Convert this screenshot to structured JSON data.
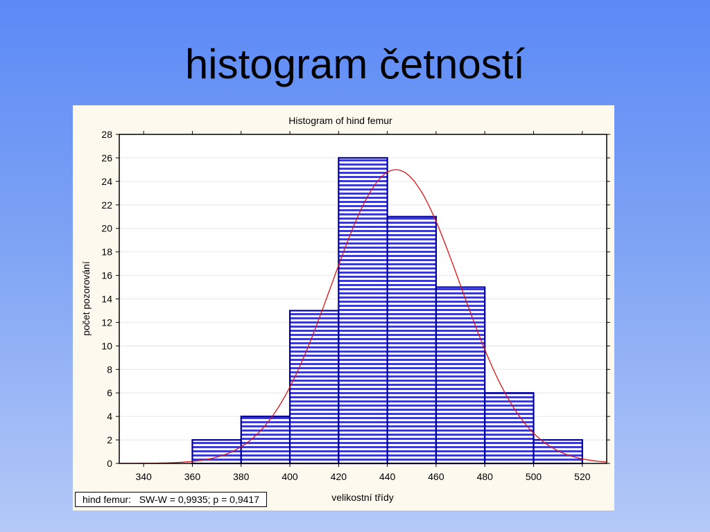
{
  "slide": {
    "title": "histogram četností"
  },
  "stats_box": {
    "text": "hind femur:   SW-W = 0,9935; p = 0,9417"
  },
  "chart_data": {
    "type": "bar",
    "title": "Histogram of hind femur",
    "xlabel": "velikostní třídy",
    "ylabel": "počet pozorování",
    "xlim": [
      330,
      530
    ],
    "ylim": [
      0,
      28
    ],
    "x_ticks": [
      340,
      360,
      380,
      400,
      420,
      440,
      460,
      480,
      500,
      520
    ],
    "y_ticks": [
      0,
      2,
      4,
      6,
      8,
      10,
      12,
      14,
      16,
      18,
      20,
      22,
      24,
      26,
      28
    ],
    "bins": [
      {
        "from": 360,
        "to": 380,
        "count": 2
      },
      {
        "from": 380,
        "to": 400,
        "count": 4
      },
      {
        "from": 400,
        "to": 420,
        "count": 13
      },
      {
        "from": 420,
        "to": 440,
        "count": 26
      },
      {
        "from": 440,
        "to": 460,
        "count": 21
      },
      {
        "from": 460,
        "to": 480,
        "count": 15
      },
      {
        "from": 480,
        "to": 500,
        "count": 6
      },
      {
        "from": 500,
        "to": 520,
        "count": 2
      }
    ],
    "normal_fit": {
      "mean": 443.5,
      "peak": 25,
      "sd": 26.5
    },
    "grid": true,
    "colors": {
      "bar_fill": "#3b3bd1",
      "bar_edge": "#000099",
      "curve": "#dd1111",
      "grid": "#e6e6e6"
    }
  }
}
